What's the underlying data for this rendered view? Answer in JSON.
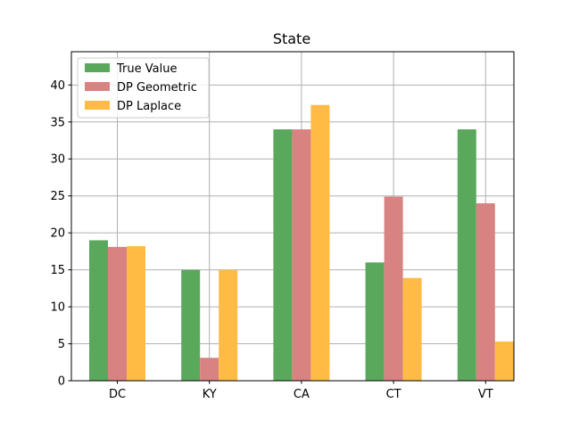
{
  "chart_data": {
    "type": "bar",
    "title": "State",
    "xlabel": "",
    "ylabel": "",
    "categories": [
      "DC",
      "KY",
      "CA",
      "CT",
      "VT"
    ],
    "series": [
      {
        "name": "True Value",
        "values": [
          19,
          15,
          34,
          16,
          34
        ],
        "color": "#5aa85c"
      },
      {
        "name": "DP Geometric",
        "values": [
          18.1,
          3.1,
          34,
          24.9,
          24
        ],
        "color": "#d98282"
      },
      {
        "name": "DP Laplace",
        "values": [
          18.2,
          15,
          37.3,
          13.9,
          5.3
        ],
        "color": "#ffbb44"
      }
    ],
    "ylim": [
      0,
      44.5
    ],
    "yticks": [
      0,
      5,
      10,
      15,
      20,
      25,
      30,
      35,
      40
    ],
    "grid": true,
    "legend_position": "top-left"
  }
}
